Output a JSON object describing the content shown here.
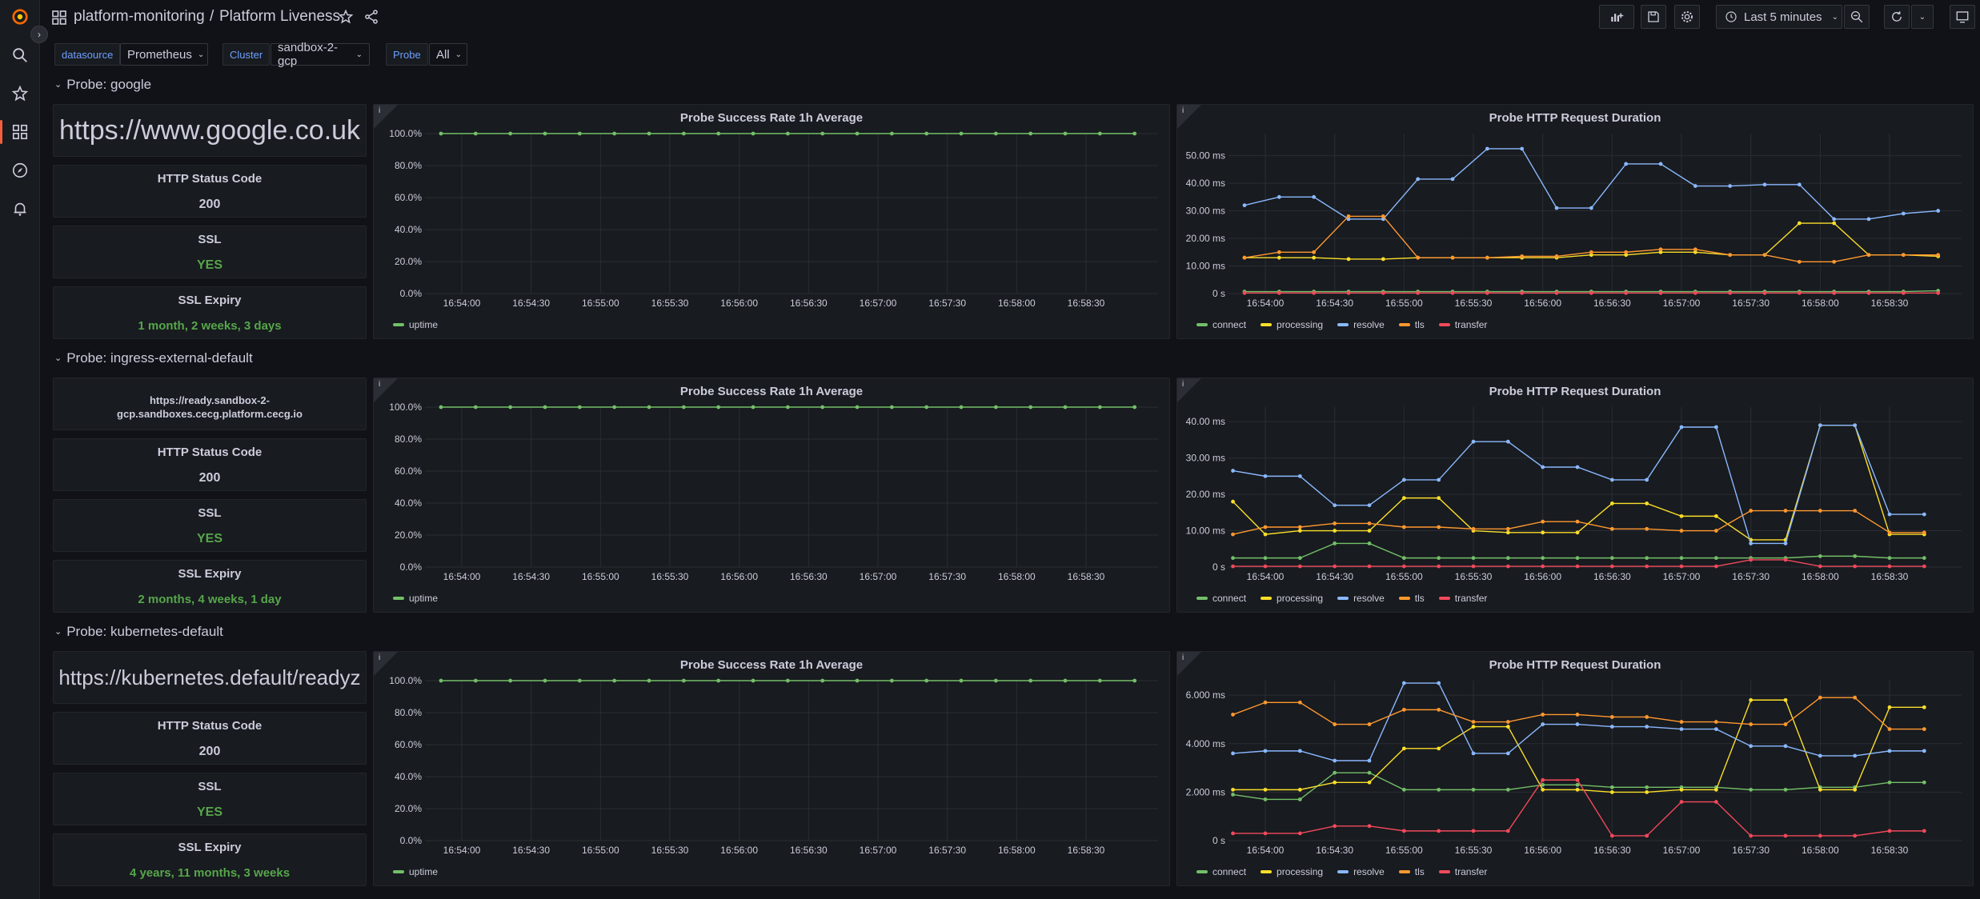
{
  "header": {
    "folder": "platform-monitoring",
    "separator": "/",
    "dashboard_title": "Platform Liveness",
    "time_range": "Last 5 minutes"
  },
  "variables": [
    {
      "label": "datasource",
      "value": "Prometheus"
    },
    {
      "label": "Cluster",
      "value": "sandbox-2-gcp"
    },
    {
      "label": "Probe",
      "value": "All"
    }
  ],
  "colors": {
    "connect": "#73bf69",
    "processing": "#fade2a",
    "resolve": "#8ab8ff",
    "tls": "#ff9830",
    "transfer": "#f2495c",
    "uptime": "#73bf69",
    "ok": "#56a64b"
  },
  "time_ticks": [
    "16:54:00",
    "16:54:30",
    "16:55:00",
    "16:55:30",
    "16:56:00",
    "16:56:30",
    "16:57:00",
    "16:57:30",
    "16:58:00",
    "16:58:30"
  ],
  "panel_titles": {
    "success": "Probe Success Rate 1h Average",
    "duration": "Probe HTTP Request Duration",
    "status": "HTTP Status Code",
    "ssl": "SSL",
    "expiry": "SSL Expiry"
  },
  "legend": {
    "uptime": "uptime",
    "duration": [
      "connect",
      "processing",
      "resolve",
      "tls",
      "transfer"
    ]
  },
  "success_ticks": [
    "100.0%",
    "80.0%",
    "60.0%",
    "40.0%",
    "20.0%",
    "0.0%"
  ],
  "probes": [
    {
      "row_title": "Probe: google",
      "url": "https://www.google.co.uk",
      "status_code": "200",
      "ssl": "YES",
      "ssl_expiry": "1 month, 2 weeks, 3 days",
      "duration_ticks": [
        "50.00 ms",
        "40.00 ms",
        "30.00 ms",
        "20.00 ms",
        "10.00 ms",
        "0 s"
      ]
    },
    {
      "row_title": "Probe: ingress-external-default",
      "url": "https://ready.sandbox-2-gcp.sandboxes.cecg.platform.cecg.io",
      "status_code": "200",
      "ssl": "YES",
      "ssl_expiry": "2 months, 4 weeks, 1 day",
      "duration_ticks": [
        "40.00 ms",
        "30.00 ms",
        "20.00 ms",
        "10.00 ms",
        "0 s"
      ]
    },
    {
      "row_title": "Probe: kubernetes-default",
      "url": "https://kubernetes.default/readyz",
      "status_code": "200",
      "ssl": "YES",
      "ssl_expiry": "4 years, 11 months, 3 weeks",
      "duration_ticks": [
        "6.000 ms",
        "4.000 ms",
        "2.000 ms",
        "0 s"
      ]
    }
  ],
  "chart_data": [
    {
      "type": "line",
      "title": "Probe Success Rate 1h Average",
      "probe": "google",
      "ylim": [
        0,
        100
      ],
      "x": [
        "16:53:51",
        "16:54:06",
        "16:54:21",
        "16:54:36",
        "16:54:51",
        "16:55:06",
        "16:55:21",
        "16:55:36",
        "16:55:51",
        "16:56:06",
        "16:56:21",
        "16:56:36",
        "16:56:51",
        "16:57:06",
        "16:57:21",
        "16:57:36",
        "16:57:51",
        "16:58:06",
        "16:58:21",
        "16:58:36",
        "16:58:51"
      ],
      "series": [
        {
          "name": "uptime",
          "values": [
            100,
            100,
            100,
            100,
            100,
            100,
            100,
            100,
            100,
            100,
            100,
            100,
            100,
            100,
            100,
            100,
            100,
            100,
            100,
            100,
            100
          ]
        }
      ]
    },
    {
      "type": "line",
      "title": "Probe HTTP Request Duration",
      "probe": "google",
      "ylim": [
        0,
        58
      ],
      "x": [
        "16:53:51",
        "16:54:06",
        "16:54:21",
        "16:54:36",
        "16:54:51",
        "16:55:06",
        "16:55:21",
        "16:55:36",
        "16:55:51",
        "16:56:06",
        "16:56:21",
        "16:56:36",
        "16:56:51",
        "16:57:06",
        "16:57:21",
        "16:57:36",
        "16:57:51",
        "16:58:06",
        "16:58:21",
        "16:58:36",
        "16:58:51"
      ],
      "series": [
        {
          "name": "connect",
          "values": [
            0.7,
            0.7,
            0.7,
            0.7,
            0.7,
            0.7,
            0.7,
            0.7,
            0.7,
            0.7,
            0.7,
            0.7,
            0.7,
            0.7,
            0.7,
            0.7,
            0.7,
            0.7,
            0.7,
            0.7,
            1.0
          ]
        },
        {
          "name": "processing",
          "values": [
            13,
            13,
            13,
            12.5,
            12.5,
            13,
            13,
            13,
            13,
            13,
            14,
            14,
            15,
            15,
            14,
            14,
            25.5,
            25.5,
            14,
            14,
            13.5
          ]
        },
        {
          "name": "resolve",
          "values": [
            32,
            35,
            35,
            27,
            27,
            41.5,
            41.5,
            52.5,
            52.5,
            31,
            31,
            47,
            47,
            39,
            39,
            39.5,
            39.5,
            27,
            27,
            29,
            30
          ]
        },
        {
          "name": "tls",
          "values": [
            13,
            15,
            15,
            28,
            28,
            13,
            13,
            13,
            13.5,
            13.5,
            15,
            15,
            16,
            16,
            14,
            14,
            11.5,
            11.5,
            14,
            14,
            14
          ]
        },
        {
          "name": "transfer",
          "values": [
            0.2,
            0.2,
            0.2,
            0.2,
            0.2,
            0.2,
            0.2,
            0.2,
            0.2,
            0.2,
            0.2,
            0.2,
            0.2,
            0.2,
            0.2,
            0.2,
            0.2,
            0.2,
            0.2,
            0.2,
            0.2
          ]
        }
      ]
    },
    {
      "type": "line",
      "title": "Probe Success Rate 1h Average",
      "probe": "ingress-external-default",
      "ylim": [
        0,
        100
      ],
      "x": [
        "16:53:51",
        "16:54:06",
        "16:54:21",
        "16:54:36",
        "16:54:51",
        "16:55:06",
        "16:55:21",
        "16:55:36",
        "16:55:51",
        "16:56:06",
        "16:56:21",
        "16:56:36",
        "16:56:51",
        "16:57:06",
        "16:57:21",
        "16:57:36",
        "16:57:51",
        "16:58:06",
        "16:58:21",
        "16:58:36",
        "16:58:51"
      ],
      "series": [
        {
          "name": "uptime",
          "values": [
            100,
            100,
            100,
            100,
            100,
            100,
            100,
            100,
            100,
            100,
            100,
            100,
            100,
            100,
            100,
            100,
            100,
            100,
            100,
            100,
            100
          ]
        }
      ]
    },
    {
      "type": "line",
      "title": "Probe HTTP Request Duration",
      "probe": "ingress-external-default",
      "ylim": [
        0,
        44
      ],
      "x": [
        "16:53:46",
        "16:54:00",
        "16:54:15",
        "16:54:30",
        "16:54:45",
        "16:55:00",
        "16:55:15",
        "16:55:30",
        "16:55:45",
        "16:56:00",
        "16:56:15",
        "16:56:30",
        "16:56:45",
        "16:57:00",
        "16:57:15",
        "16:57:30",
        "16:57:45",
        "16:58:00",
        "16:58:15",
        "16:58:30",
        "16:58:45"
      ],
      "series": [
        {
          "name": "connect",
          "values": [
            2.5,
            2.5,
            2.5,
            6.5,
            6.5,
            2.5,
            2.5,
            2.5,
            2.5,
            2.5,
            2.5,
            2.5,
            2.5,
            2.5,
            2.5,
            2.5,
            2.5,
            3,
            3,
            2.5,
            2.5
          ]
        },
        {
          "name": "processing",
          "values": [
            18,
            9,
            10,
            10,
            10,
            19,
            19,
            10,
            9.5,
            9.5,
            9.5,
            17.5,
            17.5,
            14,
            14,
            7.5,
            7.5,
            39,
            39,
            9,
            9
          ]
        },
        {
          "name": "resolve",
          "values": [
            26.5,
            25,
            25,
            17,
            17,
            24,
            24,
            34.5,
            34.5,
            27.5,
            27.5,
            24,
            24,
            38.5,
            38.5,
            6.5,
            6.5,
            39,
            39,
            14.5,
            14.5
          ]
        },
        {
          "name": "tls",
          "values": [
            9,
            11,
            11,
            12,
            12,
            11,
            11,
            10.5,
            10.5,
            12.5,
            12.5,
            10.5,
            10.5,
            10,
            10,
            15.5,
            15.5,
            15.5,
            15.5,
            9.5,
            9.5
          ]
        },
        {
          "name": "transfer",
          "values": [
            0.2,
            0.2,
            0.2,
            0.2,
            0.2,
            0.2,
            0.2,
            0.2,
            0.2,
            0.2,
            0.2,
            0.2,
            0.2,
            0.2,
            0.2,
            2,
            2,
            0.2,
            0.2,
            0.2,
            0.2
          ]
        }
      ]
    },
    {
      "type": "line",
      "title": "Probe Success Rate 1h Average",
      "probe": "kubernetes-default",
      "ylim": [
        0,
        100
      ],
      "x": [
        "16:53:51",
        "16:54:06",
        "16:54:21",
        "16:54:36",
        "16:54:51",
        "16:55:06",
        "16:55:21",
        "16:55:36",
        "16:55:51",
        "16:56:06",
        "16:56:21",
        "16:56:36",
        "16:56:51",
        "16:57:06",
        "16:57:21",
        "16:57:36",
        "16:57:51",
        "16:58:06",
        "16:58:21",
        "16:58:36",
        "16:58:51"
      ],
      "series": [
        {
          "name": "uptime",
          "values": [
            100,
            100,
            100,
            100,
            100,
            100,
            100,
            100,
            100,
            100,
            100,
            100,
            100,
            100,
            100,
            100,
            100,
            100,
            100,
            100,
            100
          ]
        }
      ]
    },
    {
      "type": "line",
      "title": "Probe HTTP Request Duration",
      "probe": "kubernetes-default",
      "ylim": [
        0,
        6.6
      ],
      "x": [
        "16:53:46",
        "16:54:00",
        "16:54:15",
        "16:54:30",
        "16:54:45",
        "16:55:00",
        "16:55:15",
        "16:55:30",
        "16:55:45",
        "16:56:00",
        "16:56:15",
        "16:56:30",
        "16:56:45",
        "16:57:00",
        "16:57:15",
        "16:57:30",
        "16:57:45",
        "16:58:00",
        "16:58:15",
        "16:58:30",
        "16:58:45"
      ],
      "series": [
        {
          "name": "connect",
          "values": [
            1.9,
            1.7,
            1.7,
            2.8,
            2.8,
            2.1,
            2.1,
            2.1,
            2.1,
            2.3,
            2.3,
            2.2,
            2.2,
            2.2,
            2.2,
            2.1,
            2.1,
            2.2,
            2.2,
            2.4,
            2.4
          ]
        },
        {
          "name": "processing",
          "values": [
            2.1,
            2.1,
            2.1,
            2.4,
            2.4,
            3.8,
            3.8,
            4.7,
            4.7,
            2.1,
            2.1,
            2.0,
            2.0,
            2.1,
            2.1,
            5.8,
            5.8,
            2.1,
            2.1,
            5.5,
            5.5
          ]
        },
        {
          "name": "resolve",
          "values": [
            3.6,
            3.7,
            3.7,
            3.3,
            3.3,
            6.5,
            6.5,
            3.6,
            3.6,
            4.8,
            4.8,
            4.7,
            4.7,
            4.6,
            4.6,
            3.9,
            3.9,
            3.5,
            3.5,
            3.7,
            3.7
          ]
        },
        {
          "name": "tls",
          "values": [
            5.2,
            5.7,
            5.7,
            4.8,
            4.8,
            5.4,
            5.4,
            4.9,
            4.9,
            5.2,
            5.2,
            5.1,
            5.1,
            4.9,
            4.9,
            4.8,
            4.8,
            5.9,
            5.9,
            4.6,
            4.6
          ]
        },
        {
          "name": "transfer",
          "values": [
            0.3,
            0.3,
            0.3,
            0.6,
            0.6,
            0.4,
            0.4,
            0.4,
            0.4,
            2.5,
            2.5,
            0.2,
            0.2,
            1.6,
            1.6,
            0.2,
            0.2,
            0.2,
            0.2,
            0.4,
            0.4
          ]
        }
      ]
    }
  ]
}
